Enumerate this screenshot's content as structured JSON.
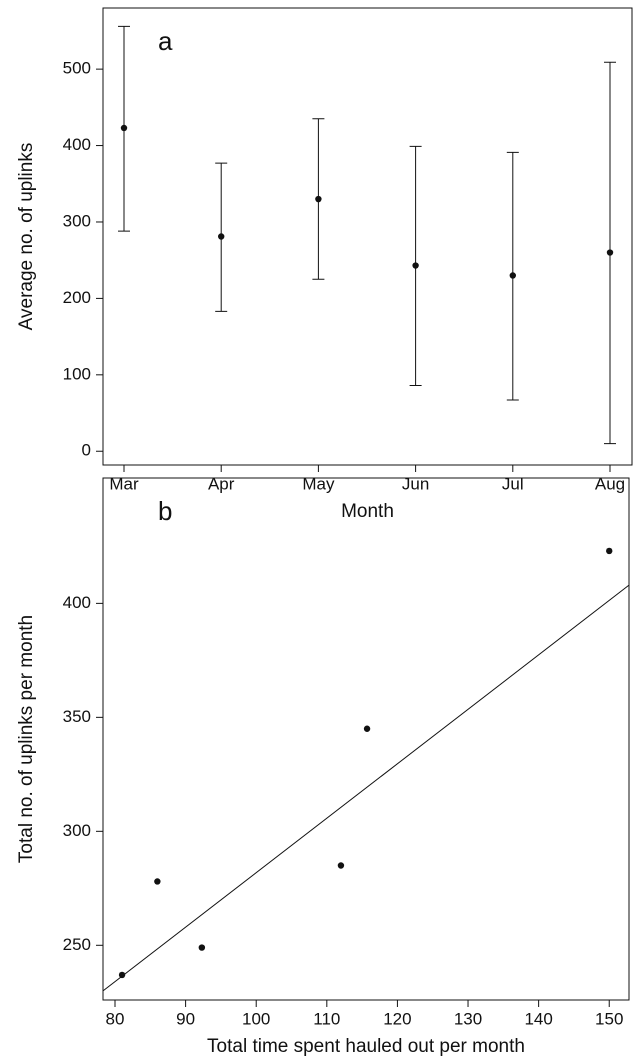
{
  "chart_data": [
    {
      "type": "errorbar",
      "panel_label": "a",
      "x_label": "Month",
      "y_label": "Average no. of uplinks",
      "categories": [
        "Mar",
        "Apr",
        "May",
        "Jun",
        "Jul",
        "Aug"
      ],
      "values": [
        423,
        281,
        330,
        243,
        230,
        260
      ],
      "lower": [
        288,
        183,
        225,
        86,
        67,
        10
      ],
      "upper": [
        556,
        377,
        435,
        399,
        391,
        509
      ],
      "ylim": [
        -18,
        580
      ],
      "yticks": [
        0,
        100,
        200,
        300,
        400,
        500
      ],
      "color": "#111"
    },
    {
      "type": "scatter",
      "panel_label": "b",
      "x_label": "Total time spent hauled out per month",
      "y_label": "Total no. of uplinks per month",
      "x": [
        150,
        115.7,
        112,
        92.3,
        81,
        86
      ],
      "values": [
        423,
        345,
        285,
        249,
        237,
        278
      ],
      "fit_x": [
        78.3,
        152.8
      ],
      "fit_y": [
        230,
        408
      ],
      "xlim": [
        78.3,
        152.8
      ],
      "ylim": [
        226,
        455
      ],
      "xticks": [
        80,
        90,
        100,
        110,
        120,
        130,
        140,
        150
      ],
      "yticks": [
        250,
        300,
        350,
        400
      ],
      "color": "#111"
    }
  ]
}
